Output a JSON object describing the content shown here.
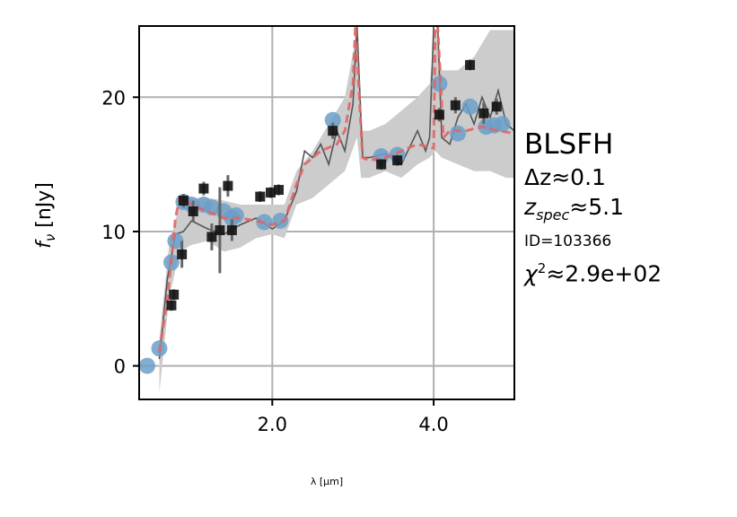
{
  "chart_data": {
    "type": "scatter",
    "xlabel": "λ [μm]",
    "ylabel": "f_ν [nJy]",
    "xlim": [
      0.35,
      5.0
    ],
    "ylim": [
      -2.5,
      25.3
    ],
    "xticks": [
      2.0,
      4.0
    ],
    "xtick_labels": [
      "2.0",
      "4.0"
    ],
    "yticks": [
      0,
      10,
      20
    ],
    "ytick_labels": [
      "0",
      "10",
      "20"
    ],
    "grid": true,
    "colors": {
      "model_fill": "#cccccc",
      "model_line": "#555555",
      "fit_line": "#e06666",
      "photometry_points": "#6a9fc8",
      "observed_squares": "#111111"
    },
    "series": [
      {
        "role": "model-uncertainty-band",
        "x": [
          0.6,
          0.72,
          0.85,
          1.0,
          1.2,
          1.4,
          1.6,
          1.8,
          2.0,
          2.15,
          2.3,
          2.5,
          2.7,
          2.9,
          3.05,
          3.1,
          3.2,
          3.4,
          3.6,
          3.8,
          3.95,
          4.02,
          4.1,
          4.3,
          4.5,
          4.7,
          4.9,
          5.0
        ],
        "lower": [
          -2.0,
          5.0,
          8.5,
          9.0,
          9.3,
          8.5,
          8.8,
          9.5,
          9.8,
          9.5,
          12.0,
          12.5,
          13.5,
          14.5,
          17.0,
          14.0,
          14.0,
          14.5,
          14.0,
          15.0,
          15.5,
          16.0,
          15.5,
          15.0,
          14.5,
          14.5,
          14.0,
          14.0
        ],
        "upper": [
          2.0,
          9.0,
          12.0,
          12.5,
          12.5,
          12.3,
          12.0,
          12.0,
          12.0,
          12.0,
          14.5,
          16.0,
          18.0,
          20.0,
          25.0,
          17.5,
          17.5,
          18.0,
          19.0,
          20.0,
          21.0,
          25.0,
          22.0,
          22.0,
          23.0,
          25.0,
          25.0,
          25.0
        ]
      },
      {
        "role": "model-spectrum-line",
        "x": [
          0.6,
          0.7,
          0.8,
          0.9,
          1.0,
          1.2,
          1.4,
          1.6,
          1.8,
          2.0,
          2.15,
          2.3,
          2.4,
          2.5,
          2.6,
          2.7,
          2.8,
          2.9,
          3.0,
          3.05,
          3.12,
          3.2,
          3.4,
          3.6,
          3.8,
          3.9,
          3.95,
          4.0,
          4.05,
          4.1,
          4.2,
          4.3,
          4.4,
          4.5,
          4.6,
          4.7,
          4.8,
          4.9,
          5.0
        ],
        "y": [
          0.5,
          6.5,
          9.8,
          10.0,
          10.8,
          10.2,
          9.8,
          10.5,
          11.0,
          10.2,
          10.8,
          13.0,
          16.0,
          15.5,
          16.5,
          15.0,
          17.5,
          16.0,
          19.5,
          25.3,
          15.5,
          15.5,
          15.8,
          15.0,
          17.5,
          16.0,
          17.0,
          25.3,
          25.3,
          17.0,
          16.5,
          18.5,
          19.5,
          18.0,
          20.0,
          18.5,
          20.5,
          18.0,
          17.5
        ]
      },
      {
        "role": "fit-dashed-line",
        "x": [
          0.6,
          0.7,
          0.8,
          0.85,
          0.9,
          1.0,
          1.2,
          1.4,
          1.6,
          1.8,
          2.0,
          2.15,
          2.3,
          2.4,
          2.6,
          2.8,
          2.9,
          3.0,
          3.03,
          3.12,
          3.2,
          3.4,
          3.6,
          3.8,
          4.0,
          4.02,
          4.05,
          4.12,
          4.2,
          4.4,
          4.6,
          4.8,
          5.0
        ],
        "y": [
          1.0,
          5.0,
          11.0,
          12.5,
          12.5,
          12.0,
          11.5,
          11.0,
          11.0,
          10.8,
          10.5,
          10.8,
          13.5,
          15.0,
          16.0,
          16.5,
          17.5,
          21.0,
          25.3,
          15.5,
          15.3,
          15.5,
          16.0,
          16.5,
          16.2,
          25.3,
          25.3,
          17.0,
          17.5,
          17.5,
          17.8,
          17.5,
          17.3
        ]
      },
      {
        "role": "photometry-points",
        "x": [
          0.45,
          0.6,
          0.75,
          0.8,
          0.9,
          1.0,
          1.15,
          1.25,
          1.4,
          1.5,
          1.55,
          1.9,
          2.1,
          2.75,
          3.35,
          3.55,
          4.07,
          4.3,
          4.45,
          4.65,
          4.75,
          4.85
        ],
        "y": [
          0.0,
          1.3,
          7.7,
          9.3,
          12.2,
          12.0,
          12.0,
          11.8,
          11.5,
          11.0,
          11.2,
          10.7,
          10.8,
          18.3,
          15.6,
          15.7,
          21.0,
          17.3,
          19.3,
          17.8,
          17.9,
          18.0
        ]
      },
      {
        "role": "observed-squares",
        "x": [
          0.75,
          0.78,
          0.88,
          0.9,
          1.02,
          1.15,
          1.25,
          1.35,
          1.45,
          1.5,
          1.85,
          1.98,
          2.08,
          2.75,
          3.35,
          3.55,
          4.07,
          4.27,
          4.45,
          4.62,
          4.78
        ],
        "y": [
          4.5,
          5.3,
          8.3,
          12.3,
          11.5,
          13.2,
          9.6,
          10.1,
          13.4,
          10.1,
          12.6,
          12.9,
          13.1,
          17.5,
          15.0,
          15.3,
          18.7,
          19.4,
          22.4,
          18.8,
          19.3
        ],
        "errors": [
          0.4,
          0.4,
          1.0,
          0.5,
          0.8,
          0.5,
          1.0,
          3.2,
          0.8,
          0.8,
          0.4,
          0.4,
          0.4,
          0.6,
          0.4,
          0.4,
          0.5,
          0.6,
          0.4,
          0.8,
          0.6
        ]
      }
    ]
  },
  "annotations": {
    "name": "BLSFH",
    "dz": "Δz≈0.1",
    "zspec_value": "≈5.1",
    "id": "ID=103366",
    "chi2_value": "≈2.9e+02"
  }
}
